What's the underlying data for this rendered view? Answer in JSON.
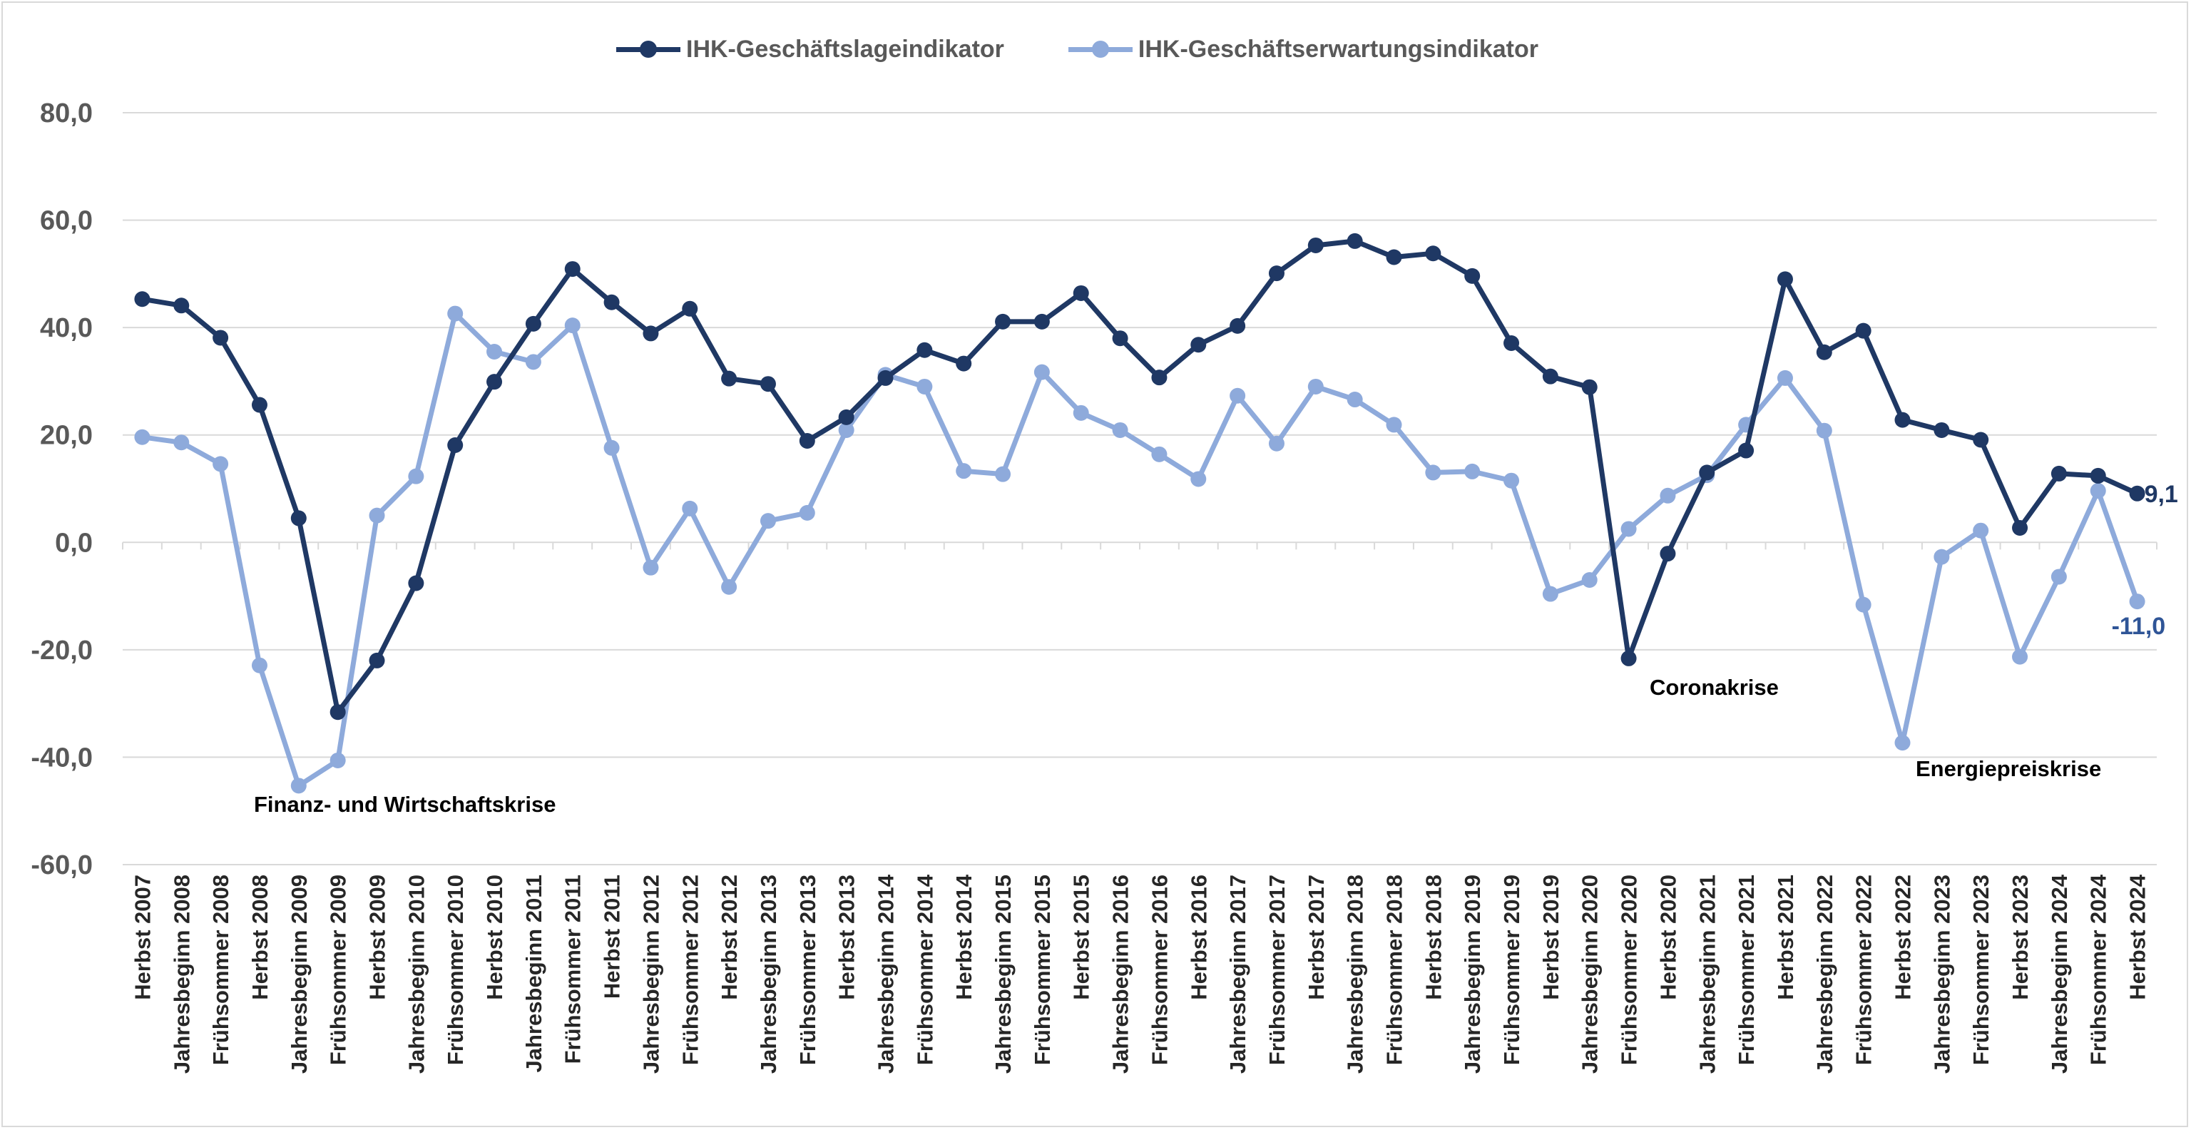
{
  "chart_data": {
    "type": "line",
    "title": "",
    "xlabel": "",
    "ylabel": "",
    "ylim": [
      -60,
      80
    ],
    "yticks": [
      80,
      60,
      40,
      20,
      0,
      -20,
      -40,
      -60
    ],
    "ytick_labels": [
      "80,0",
      "60,0",
      "40,0",
      "20,0",
      "0,0",
      "-20,0",
      "-40,0",
      "-60,0"
    ],
    "grid": true,
    "legend_position": "top-center",
    "categories": [
      "Herbst 2007",
      "Jahresbeginn 2008",
      "Frühsommer 2008",
      "Herbst 2008",
      "Jahresbeginn 2009",
      "Frühsommer 2009",
      "Herbst 2009",
      "Jahresbeginn 2010",
      "Frühsommer 2010",
      "Herbst 2010",
      "Jahresbeginn 2011",
      "Frühsommer 2011",
      "Herbst 2011",
      "Jahresbeginn 2012",
      "Frühsommer 2012",
      "Herbst 2012",
      "Jahresbeginn 2013",
      "Frühsommer 2013",
      "Herbst 2013",
      "Jahresbeginn 2014",
      "Frühsommer 2014",
      "Herbst 2014",
      "Jahresbeginn 2015",
      "Frühsommer 2015",
      "Herbst 2015",
      "Jahresbeginn 2016",
      "Frühsommer 2016",
      "Herbst 2016",
      "Jahresbeginn 2017",
      "Frühsommer 2017",
      "Herbst 2017",
      "Jahresbeginn 2018",
      "Frühsommer 2018",
      "Herbst 2018",
      "Jahresbeginn 2019",
      "Frühsommer 2019",
      "Herbst 2019",
      "Jahresbeginn 2020",
      "Frühsommer 2020",
      "Herbst 2020",
      "Jahresbeginn 2021",
      "Frühsommer 2021",
      "Herbst 2021",
      "Jahresbeginn 2022",
      "Frühsommer 2022",
      "Herbst 2022",
      "Jahresbeginn 2023",
      "Frühsommer 2023",
      "Herbst 2023",
      "Jahresbeginn 2024",
      "Frühsommer 2024",
      "Herbst 2024"
    ],
    "series": [
      {
        "name": "IHK-Geschäftslageindikator",
        "color": "#1f3864",
        "values": [
          45.3,
          44.1,
          38.1,
          25.6,
          4.5,
          -31.6,
          -22.0,
          -7.6,
          18.1,
          29.9,
          40.7,
          50.9,
          44.7,
          38.9,
          43.5,
          30.5,
          29.5,
          18.9,
          23.3,
          30.6,
          35.8,
          33.3,
          41.1,
          41.1,
          46.4,
          38.0,
          30.7,
          36.8,
          40.3,
          50.1,
          55.3,
          56.1,
          53.1,
          53.8,
          49.6,
          37.1,
          30.9,
          28.9,
          -21.6,
          -2.1,
          13.0,
          17.1,
          49.0,
          35.4,
          39.4,
          22.8,
          20.9,
          19.1,
          2.7,
          12.8,
          12.4,
          9.1
        ],
        "end_label": "9,1"
      },
      {
        "name": "IHK-Geschäftserwartungsindikator",
        "color": "#8eaadb",
        "values": [
          19.6,
          18.6,
          14.6,
          -22.9,
          -45.3,
          -40.6,
          5.0,
          12.3,
          42.6,
          35.5,
          33.6,
          40.4,
          17.6,
          -4.7,
          6.3,
          -8.3,
          4.0,
          5.5,
          20.9,
          31.2,
          29.0,
          13.3,
          12.7,
          31.7,
          24.1,
          20.9,
          16.4,
          11.8,
          27.3,
          18.4,
          29.0,
          26.6,
          21.9,
          13.0,
          13.2,
          11.5,
          -9.6,
          -7.0,
          2.5,
          8.7,
          12.5,
          21.9,
          30.6,
          20.8,
          -11.6,
          -37.3,
          -2.7,
          2.2,
          -21.3,
          -6.4,
          9.6,
          -11.0
        ],
        "end_label": "-11,0"
      }
    ],
    "annotations": [
      {
        "text": "Finanz- und Wirtschaftskrise"
      },
      {
        "text": "Coronakrise"
      },
      {
        "text": "Energiepreiskrise"
      }
    ]
  }
}
